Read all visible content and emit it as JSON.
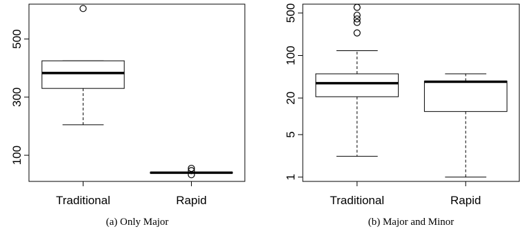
{
  "chart_data": [
    {
      "type": "boxplot",
      "caption": "(a) Only Major",
      "yscale": "linear",
      "ylim": [
        10,
        620
      ],
      "yticks": [
        100,
        300,
        500
      ],
      "grid": false,
      "categories": [
        "Traditional",
        "Rapid"
      ],
      "boxes": [
        {
          "name": "Traditional",
          "whisker_low": 205,
          "q1": 330,
          "median": 383,
          "q3": 425,
          "whisker_high": 425,
          "outliers": [
            605
          ]
        },
        {
          "name": "Rapid",
          "whisker_low": 40,
          "q1": 40,
          "median": 40,
          "q3": 41,
          "whisker_high": 41,
          "outliers": [
            33,
            47,
            55
          ]
        }
      ]
    },
    {
      "type": "boxplot",
      "caption": "(b) Major and Minor",
      "yscale": "log",
      "ylim": [
        0.85,
        700
      ],
      "yticks": [
        1,
        5,
        20,
        100,
        500
      ],
      "grid": false,
      "categories": [
        "Traditional",
        "Rapid"
      ],
      "boxes": [
        {
          "name": "Traditional",
          "whisker_low": 2.2,
          "q1": 21,
          "median": 35,
          "q3": 50,
          "whisker_high": 120,
          "outliers": [
            235,
            350,
            400,
            460,
            620
          ]
        },
        {
          "name": "Rapid",
          "whisker_low": 1.0,
          "q1": 12,
          "median": 37,
          "q3": 38,
          "whisker_high": 50,
          "outliers": []
        }
      ]
    }
  ]
}
